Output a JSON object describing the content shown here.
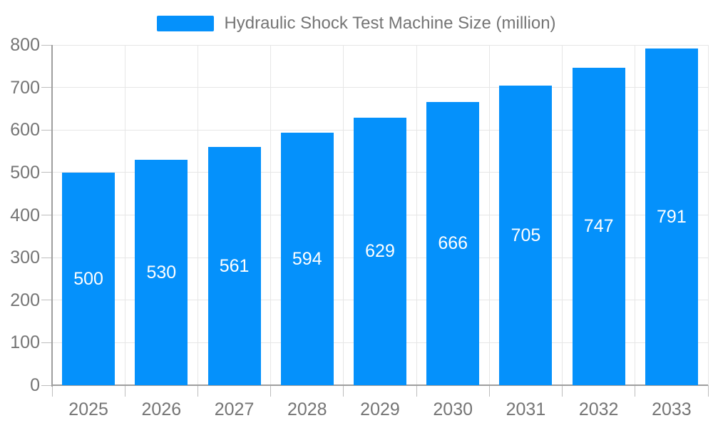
{
  "legend": {
    "label": "Hydraulic Shock Test Machine Size (million)"
  },
  "chart_data": {
    "type": "bar",
    "title": "Hydraulic Shock Test Machine Size (million)",
    "categories": [
      "2025",
      "2026",
      "2027",
      "2028",
      "2029",
      "2030",
      "2031",
      "2032",
      "2033"
    ],
    "values": [
      500,
      530,
      561,
      594,
      629,
      666,
      705,
      747,
      791
    ],
    "series": [
      {
        "name": "Hydraulic Shock Test Machine Size (million)",
        "values": [
          500,
          530,
          561,
          594,
          629,
          666,
          705,
          747,
          791
        ]
      }
    ],
    "xlabel": "",
    "ylabel": "",
    "ylim": [
      0,
      800
    ],
    "ytick_step": 100,
    "yticks": [
      0,
      100,
      200,
      300,
      400,
      500,
      600,
      700,
      800
    ],
    "grid": true,
    "legend_position": "top",
    "value_labels": true
  },
  "colors": {
    "bar": "#0591fb",
    "axis_line": "#9e9e9e",
    "grid_line": "#e6e6e6",
    "tick": "#bdbdbd",
    "axis_text": "#757575",
    "value_text": "#ffffff",
    "background": "#ffffff"
  }
}
